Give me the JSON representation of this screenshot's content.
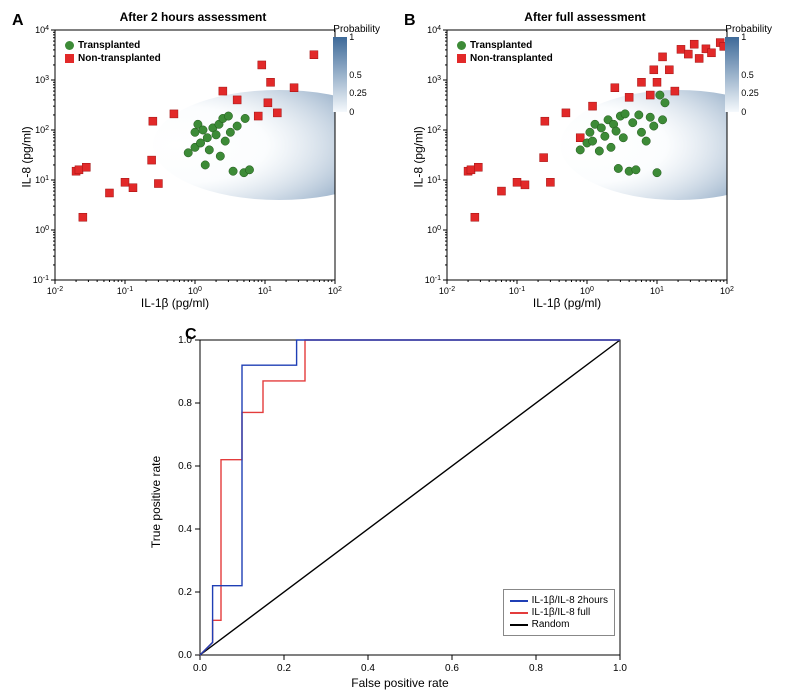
{
  "panelA": {
    "label": "A",
    "title": "After 2 hours assessment",
    "xlabel": "IL-1β (pg/ml)",
    "ylabel": "IL-8 (pg/ml)",
    "xlim_exp": [
      -2,
      2
    ],
    "ylim_exp": [
      -1,
      4
    ],
    "xticks_exp": [
      -2,
      -1,
      0,
      1,
      2
    ],
    "yticks_exp": [
      -1,
      0,
      1,
      2,
      3,
      4
    ],
    "background_color": "#ffffff",
    "axis_color": "#000000",
    "prob_gradient": {
      "start": "#f5f9fc",
      "end": "#3e6a99"
    },
    "colorbar_title": "Probability",
    "colorbar_ticks": [
      1.0,
      0.5,
      0.25,
      0.0
    ],
    "legend": [
      {
        "label": "Transplanted",
        "marker": "circle",
        "color": "#3d8b37"
      },
      {
        "label": "Non-transplanted",
        "marker": "square",
        "color": "#e22929"
      }
    ],
    "transplanted_color": "#3d8b37",
    "nontransplanted_color": "#e22929",
    "marker_size": 8,
    "transplanted": [
      [
        0.8,
        35
      ],
      [
        1,
        45
      ],
      [
        1,
        90
      ],
      [
        1.1,
        130
      ],
      [
        1.2,
        55
      ],
      [
        1.3,
        100
      ],
      [
        1.4,
        20
      ],
      [
        1.5,
        70
      ],
      [
        1.6,
        40
      ],
      [
        1.8,
        110
      ],
      [
        2,
        80
      ],
      [
        2.2,
        130
      ],
      [
        2.3,
        30
      ],
      [
        2.5,
        170
      ],
      [
        2.7,
        60
      ],
      [
        3,
        190
      ],
      [
        3.2,
        90
      ],
      [
        3.5,
        15
      ],
      [
        4,
        120
      ],
      [
        5,
        14
      ],
      [
        5.2,
        170
      ],
      [
        6,
        16
      ]
    ],
    "nontransplanted": [
      [
        0.02,
        15
      ],
      [
        0.022,
        16
      ],
      [
        0.025,
        1.8
      ],
      [
        0.028,
        18
      ],
      [
        0.06,
        5.5
      ],
      [
        0.1,
        9
      ],
      [
        0.13,
        7
      ],
      [
        0.24,
        25
      ],
      [
        0.25,
        150
      ],
      [
        0.3,
        8.5
      ],
      [
        0.5,
        210
      ],
      [
        2.5,
        600
      ],
      [
        4,
        400
      ],
      [
        8,
        190
      ],
      [
        9,
        2000
      ],
      [
        11,
        350
      ],
      [
        12,
        900
      ],
      [
        15,
        220
      ],
      [
        26,
        700
      ],
      [
        50,
        3200
      ]
    ],
    "cloud": {
      "cx_exp": 1.2,
      "cy_exp": 1.7,
      "rx_exp": 1.5,
      "ry_exp": 1.0
    }
  },
  "panelB": {
    "label": "B",
    "title": "After full assessment",
    "xlabel": "IL-1β (pg/ml)",
    "ylabel": "IL-8 (pg/ml)",
    "xlim_exp": [
      -2,
      2
    ],
    "ylim_exp": [
      -1,
      4
    ],
    "xticks_exp": [
      -2,
      -1,
      0,
      1,
      2
    ],
    "yticks_exp": [
      -1,
      0,
      1,
      2,
      3,
      4
    ],
    "background_color": "#ffffff",
    "axis_color": "#000000",
    "prob_gradient": {
      "start": "#f5f9fc",
      "end": "#3e6a99"
    },
    "colorbar_title": "Probability",
    "colorbar_ticks": [
      1.0,
      0.5,
      0.25,
      0.0
    ],
    "legend": [
      {
        "label": "Transplanted",
        "marker": "circle",
        "color": "#3d8b37"
      },
      {
        "label": "Non-transplanted",
        "marker": "square",
        "color": "#e22929"
      }
    ],
    "transplanted_color": "#3d8b37",
    "nontransplanted_color": "#e22929",
    "marker_size": 8,
    "transplanted": [
      [
        0.8,
        40
      ],
      [
        1,
        55
      ],
      [
        1.1,
        90
      ],
      [
        1.2,
        60
      ],
      [
        1.3,
        130
      ],
      [
        1.5,
        38
      ],
      [
        1.6,
        110
      ],
      [
        1.8,
        75
      ],
      [
        2,
        160
      ],
      [
        2.2,
        45
      ],
      [
        2.4,
        130
      ],
      [
        2.6,
        95
      ],
      [
        2.8,
        17
      ],
      [
        3,
        190
      ],
      [
        3.3,
        70
      ],
      [
        3.5,
        210
      ],
      [
        4,
        15
      ],
      [
        4.5,
        140
      ],
      [
        5,
        16
      ],
      [
        5.5,
        200
      ],
      [
        6,
        90
      ],
      [
        7,
        60
      ],
      [
        8,
        180
      ],
      [
        9,
        120
      ],
      [
        10,
        14
      ],
      [
        11,
        500
      ],
      [
        12,
        160
      ],
      [
        13,
        350
      ]
    ],
    "nontransplanted": [
      [
        0.02,
        15
      ],
      [
        0.022,
        16
      ],
      [
        0.025,
        1.8
      ],
      [
        0.028,
        18
      ],
      [
        0.06,
        6
      ],
      [
        0.1,
        9
      ],
      [
        0.13,
        8
      ],
      [
        0.24,
        28
      ],
      [
        0.25,
        150
      ],
      [
        0.3,
        9
      ],
      [
        0.5,
        220
      ],
      [
        0.8,
        70
      ],
      [
        1.2,
        300
      ],
      [
        2.5,
        700
      ],
      [
        4,
        450
      ],
      [
        6,
        900
      ],
      [
        8,
        500
      ],
      [
        9,
        1600
      ],
      [
        10,
        900
      ],
      [
        12,
        2900
      ],
      [
        15,
        1600
      ],
      [
        18,
        600
      ],
      [
        22,
        4100
      ],
      [
        28,
        3300
      ],
      [
        34,
        5200
      ],
      [
        40,
        2700
      ],
      [
        50,
        4200
      ],
      [
        60,
        3500
      ],
      [
        80,
        5600
      ],
      [
        90,
        4700
      ]
    ],
    "cloud": {
      "cx_exp": 1.3,
      "cy_exp": 1.7,
      "rx_exp": 1.4,
      "ry_exp": 1.0
    }
  },
  "panelC": {
    "label": "C",
    "xlabel": "False positive rate",
    "ylabel": "True positive rate",
    "xlim": [
      0,
      1
    ],
    "ylim": [
      0,
      1
    ],
    "xticks": [
      0.0,
      0.2,
      0.4,
      0.6,
      0.8,
      1.0
    ],
    "yticks": [
      0.0,
      0.2,
      0.4,
      0.6,
      0.8,
      1.0
    ],
    "background_color": "#ffffff",
    "axis_color": "#000000",
    "line_width": 1.4,
    "roc1": {
      "label": "IL-1β/IL-8 2hours",
      "color": "#1f3fb5",
      "points": [
        [
          0,
          0
        ],
        [
          0.03,
          0.04
        ],
        [
          0.03,
          0.22
        ],
        [
          0.1,
          0.22
        ],
        [
          0.1,
          0.92
        ],
        [
          0.23,
          0.92
        ],
        [
          0.23,
          1.0
        ],
        [
          0.33,
          1.0
        ],
        [
          1,
          1
        ]
      ]
    },
    "roc2": {
      "label": "IL-1β/IL-8 full",
      "color": "#e33c3c",
      "points": [
        [
          0,
          0
        ],
        [
          0.03,
          0.04
        ],
        [
          0.03,
          0.11
        ],
        [
          0.05,
          0.11
        ],
        [
          0.05,
          0.62
        ],
        [
          0.1,
          0.62
        ],
        [
          0.1,
          0.77
        ],
        [
          0.15,
          0.77
        ],
        [
          0.15,
          0.87
        ],
        [
          0.25,
          0.87
        ],
        [
          0.25,
          1.0
        ],
        [
          0.35,
          1.0
        ],
        [
          1,
          1
        ]
      ]
    },
    "random": {
      "label": "Random",
      "color": "#000000",
      "points": [
        [
          0,
          0
        ],
        [
          1,
          1
        ]
      ]
    }
  }
}
